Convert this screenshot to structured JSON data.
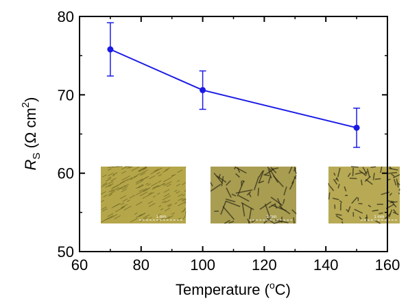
{
  "chart_data": {
    "type": "line",
    "x": [
      70,
      100,
      150
    ],
    "values": [
      75.8,
      70.6,
      65.8
    ],
    "errors": [
      3.4,
      2.45,
      2.5
    ],
    "color": "#1a1ae6",
    "xlim": [
      60,
      160
    ],
    "ylim": [
      50,
      80
    ],
    "xticks": [
      60,
      80,
      100,
      120,
      140,
      160
    ],
    "yticks": [
      50,
      60,
      70,
      80
    ],
    "xminorticks": [
      70,
      90,
      110,
      130,
      150
    ],
    "yminorticks": [
      55,
      65,
      75
    ],
    "xlabel": {
      "text": "Temperature (",
      "sup": "o",
      "end": "C)"
    },
    "ylabel": {
      "symbol": "R",
      "sub": "S",
      "text": " (Ω cm",
      "sup": "2",
      "end": ")"
    },
    "insets": [
      {
        "scale_label": "1 mm"
      },
      {
        "scale_label": "1 mm"
      },
      {
        "scale_label": "1 mm"
      }
    ]
  }
}
